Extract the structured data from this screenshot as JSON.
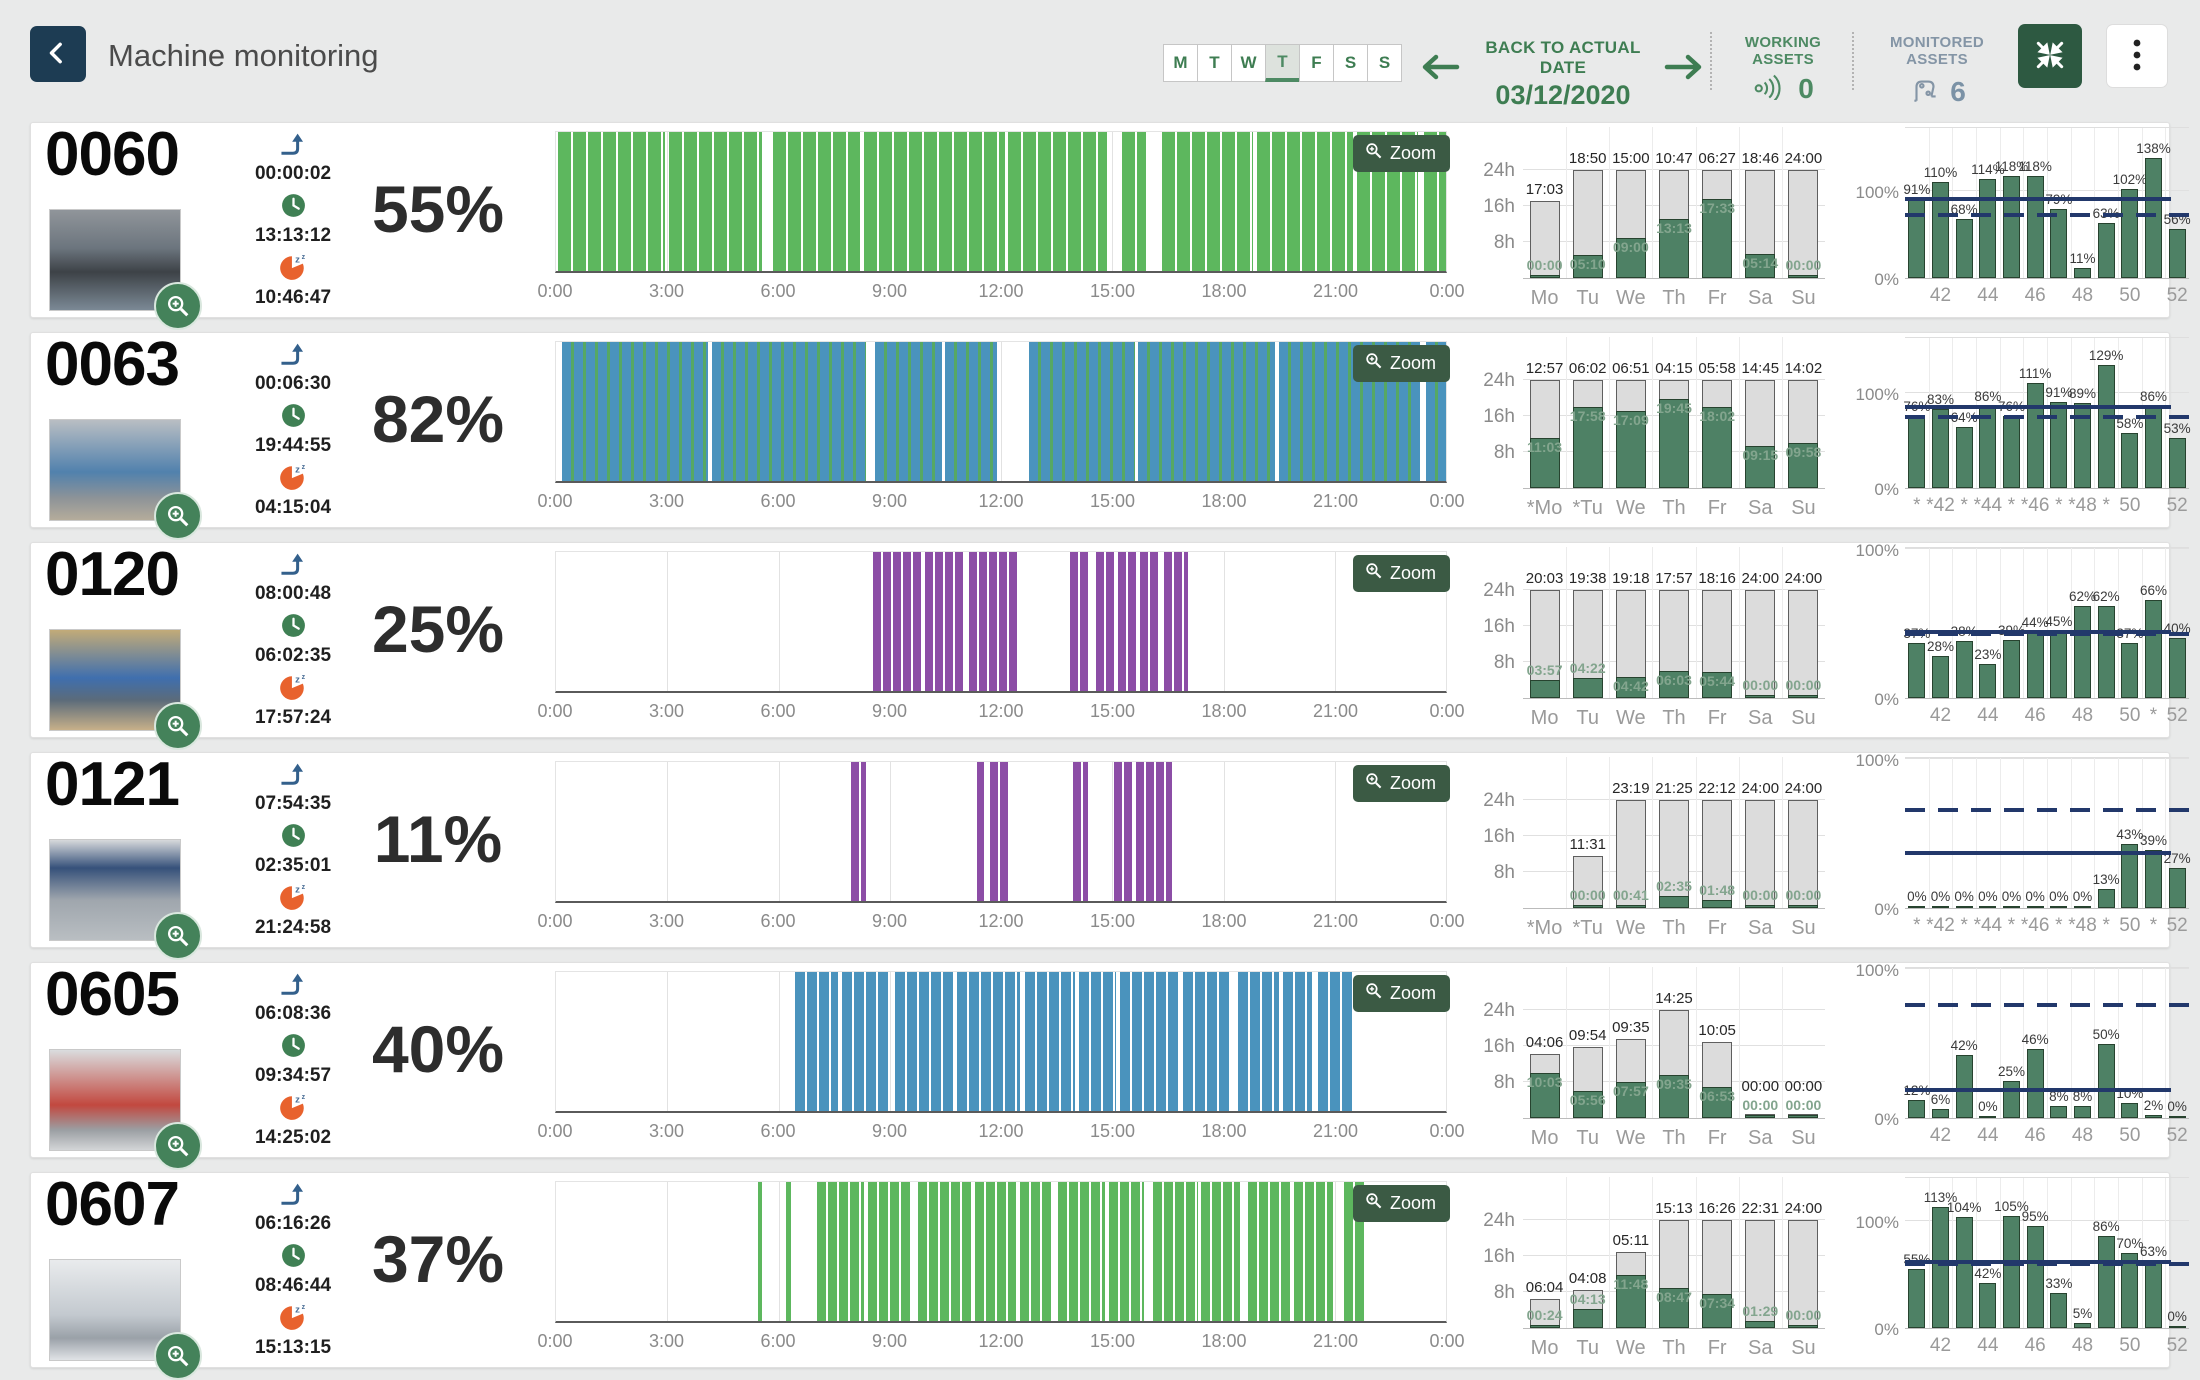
{
  "header": {
    "title": "Machine monitoring",
    "days": [
      "M",
      "T",
      "W",
      "T",
      "F",
      "S",
      "S"
    ],
    "active_day_index": 3,
    "back_to_date_label": "BACK TO ACTUAL DATE",
    "date": "03/12/2020",
    "working_assets_label": "WORKING ASSETS",
    "working_assets_count": "0",
    "monitored_assets_label": "MONITORED ASSETS",
    "monitored_assets_count": "6"
  },
  "ui": {
    "zoom_label": "Zoom"
  },
  "icons": {
    "back": "chevron-left",
    "prev": "arrow-left",
    "next": "arrow-right",
    "working": "signal-waves",
    "monitored": "robot-arm",
    "collapse": "arrows-to-center",
    "more": "kebab-dots",
    "stat1": "turn-up-arrow",
    "stat2": "clock",
    "stat3": "sleep-clock",
    "photo_zoom": "magnifier-plus",
    "zoom_button": "magnifier-plus"
  },
  "colors": {
    "accent_green": "#3e7d52",
    "navy_button": "#1d3c53",
    "dark_green_button": "#2d5941",
    "bar_green": "#4e8165",
    "bar_gray": "#dcdcdc",
    "line_navy": "#22386b",
    "timeline_green": "#5db75e",
    "timeline_blue": "#4a93bd",
    "timeline_purple": "#8c4da6"
  },
  "axes": {
    "timeline_ticks": [
      "0:00",
      "3:00",
      "6:00",
      "9:00",
      "12:00",
      "15:00",
      "18:00",
      "21:00",
      "0:00"
    ],
    "daily_yticks": [
      "24h",
      "16h",
      "8h"
    ],
    "weekly_yticks": [
      "100%",
      "0%"
    ]
  },
  "machines": [
    {
      "id": "0060",
      "percent": "55%",
      "startup_time": "00:00:02",
      "run_time": "13:13:12",
      "idle_time": "10:46:47",
      "timeline": {
        "pattern": {
          "base": "#5db75e",
          "stripe": "rgba(255,255,255,0.55)",
          "base_w": 13,
          "stripe_w": 2
        },
        "segments": [
          [
            0.05,
            2.95
          ],
          [
            3.05,
            5.55
          ],
          [
            5.85,
            8.2
          ],
          [
            8.3,
            12.1
          ],
          [
            12.2,
            14.85
          ],
          [
            15.25,
            15.9
          ],
          [
            16.35,
            18.8
          ],
          [
            18.9,
            21.5
          ],
          [
            21.6,
            23.25
          ],
          [
            23.4,
            24
          ]
        ]
      },
      "daily": {
        "days": [
          "Mo",
          "Tu",
          "We",
          "Th",
          "Fr",
          "Sa",
          "Su"
        ],
        "gray_labels": [
          "17:03",
          "18:50",
          "15:00",
          "10:47",
          "06:27",
          "18:46",
          "24:00"
        ],
        "green_labels": [
          "00:00",
          "05:10",
          "09:00",
          "13:13",
          "17:33",
          "05:14",
          "00:00"
        ]
      },
      "weekly": {
        "values": [
          91,
          110,
          68,
          114,
          118,
          118,
          79,
          11,
          63,
          102,
          138,
          56
        ],
        "labels": [
          "",
          "42",
          "",
          "44",
          "",
          "46",
          "",
          "48",
          "",
          "50",
          "",
          "52"
        ],
        "ymax": 175,
        "avg_line": 91,
        "target_line": 72
      }
    },
    {
      "id": "0063",
      "percent": "82%",
      "startup_time": "00:06:30",
      "run_time": "19:44:55",
      "idle_time": "04:15:04",
      "timeline": {
        "pattern": {
          "base": "#4a93bd",
          "stripe": "#56a863",
          "base_w": 9,
          "stripe_w": 3
        },
        "segments": [
          [
            0.15,
            4.1
          ],
          [
            4.2,
            8.35
          ],
          [
            8.6,
            10.4
          ],
          [
            10.5,
            11.9
          ],
          [
            12.75,
            15.6
          ],
          [
            15.7,
            19.4
          ],
          [
            19.5,
            23.3
          ],
          [
            23.45,
            24
          ]
        ]
      },
      "daily": {
        "days": [
          "*Mo",
          "*Tu",
          "We",
          "Th",
          "Fr",
          "Sa",
          "Su"
        ],
        "gray_labels": [
          "12:57",
          "06:02",
          "06:51",
          "04:15",
          "05:58",
          "14:45",
          "14:02"
        ],
        "green_labels": [
          "11:03",
          "17:58",
          "17:09",
          "19:45",
          "18:02",
          "09:15",
          "09:58"
        ]
      },
      "weekly": {
        "values": [
          76,
          83,
          64,
          86,
          76,
          111,
          91,
          89,
          129,
          58,
          86,
          53
        ],
        "labels": [
          "*",
          "*42",
          "*",
          "*44",
          "*",
          "*46",
          "*",
          "*48",
          "*",
          "50",
          "",
          "52"
        ],
        "ymax": 160,
        "avg_line": 85,
        "target_line": 75
      }
    },
    {
      "id": "0120",
      "percent": "25%",
      "startup_time": "08:00:48",
      "run_time": "06:02:35",
      "idle_time": "17:57:24",
      "timeline": {
        "pattern": {
          "base": "#8c4da6",
          "stripe": "rgba(255,255,255,0.32)",
          "base_w": 8,
          "stripe_w": 2
        },
        "segments": [
          [
            8.55,
            9.9
          ],
          [
            9.95,
            11.0
          ],
          [
            11.15,
            12.45
          ],
          [
            13.85,
            14.35
          ],
          [
            14.55,
            15.05
          ],
          [
            15.15,
            15.65
          ],
          [
            15.75,
            16.3
          ],
          [
            16.4,
            17.05
          ]
        ]
      },
      "daily": {
        "days": [
          "Mo",
          "Tu",
          "We",
          "Th",
          "Fr",
          "Sa",
          "Su"
        ],
        "gray_labels": [
          "20:03",
          "19:38",
          "19:18",
          "17:57",
          "18:16",
          "24:00",
          "24:00"
        ],
        "green_labels": [
          "03:57",
          "04:22",
          "04:42",
          "06:03",
          "05:44",
          "00:00",
          "00:00"
        ]
      },
      "weekly": {
        "values": [
          37,
          28,
          38,
          23,
          39,
          44,
          45,
          62,
          62,
          37,
          66,
          40
        ],
        "labels": [
          "",
          "42",
          "",
          "44",
          "",
          "46",
          "",
          "48",
          "",
          "50",
          "*",
          "52"
        ],
        "ymax": 102,
        "avg_line": 44,
        "target_line": 43
      }
    },
    {
      "id": "0121",
      "percent": "11%",
      "startup_time": "07:54:35",
      "run_time": "02:35:01",
      "idle_time": "21:24:58",
      "timeline": {
        "pattern": {
          "base": "#8c4da6",
          "stripe": "rgba(255,255,255,0.32)",
          "base_w": 8,
          "stripe_w": 2
        },
        "segments": [
          [
            7.95,
            8.35
          ],
          [
            11.35,
            11.55
          ],
          [
            11.7,
            12.2
          ],
          [
            13.95,
            14.35
          ],
          [
            15.05,
            15.55
          ],
          [
            15.65,
            16.6
          ]
        ]
      },
      "daily": {
        "days": [
          "*Mo",
          "*Tu",
          "We",
          "Th",
          "Fr",
          "Sa",
          "Su"
        ],
        "gray_labels": [
          null,
          "11:31",
          "23:19",
          "21:25",
          "22:12",
          "24:00",
          "24:00"
        ],
        "green_labels": [
          null,
          "00:00",
          "00:41",
          "02:35",
          "01:48",
          "00:00",
          "00:00"
        ]
      },
      "weekly": {
        "values": [
          0,
          0,
          0,
          0,
          0,
          0,
          0,
          0,
          13,
          43,
          39,
          27
        ],
        "labels": [
          "*",
          "*42",
          "*",
          "*44",
          "*",
          "*46",
          "*",
          "*48",
          "*",
          "50",
          "*",
          "52"
        ],
        "ymax": 102,
        "avg_line": 37,
        "target_line": 66
      }
    },
    {
      "id": "0605",
      "percent": "40%",
      "startup_time": "06:08:36",
      "run_time": "09:34:57",
      "idle_time": "14:25:02",
      "timeline": {
        "pattern": {
          "base": "#4a93bd",
          "stripe": "rgba(255,255,255,0.55)",
          "base_w": 10,
          "stripe_w": 2
        },
        "segments": [
          [
            6.45,
            7.6
          ],
          [
            7.7,
            9.0
          ],
          [
            9.15,
            10.7
          ],
          [
            10.8,
            12.5
          ],
          [
            12.65,
            14.0
          ],
          [
            14.1,
            15.1
          ],
          [
            15.2,
            16.8
          ],
          [
            16.9,
            18.2
          ],
          [
            18.4,
            19.5
          ],
          [
            19.6,
            20.4
          ],
          [
            20.55,
            21.5
          ]
        ]
      },
      "daily": {
        "days": [
          "Mo",
          "Tu",
          "We",
          "Th",
          "Fr",
          "Sa",
          "Su"
        ],
        "gray_labels": [
          "04:06",
          "09:54",
          "09:35",
          "14:25",
          "10:05",
          "00:00",
          "00:00"
        ],
        "green_labels": [
          "10:03",
          "05:56",
          "07:57",
          "09:35",
          "06:53",
          "00:00",
          "00:00"
        ]
      },
      "weekly": {
        "values": [
          12,
          6,
          42,
          0,
          25,
          46,
          8,
          8,
          50,
          10,
          2,
          0
        ],
        "labels": [
          "",
          "42",
          "",
          "44",
          "",
          "46",
          "",
          "48",
          "",
          "50",
          "",
          "52"
        ],
        "ymax": 102,
        "avg_line": 19,
        "target_line": 76
      }
    },
    {
      "id": "0607",
      "percent": "37%",
      "startup_time": "06:16:26",
      "run_time": "08:46:44",
      "idle_time": "15:13:15",
      "timeline": {
        "pattern": {
          "base": "#5db75e",
          "stripe": "rgba(255,255,255,0.55)",
          "base_w": 9,
          "stripe_w": 2
        },
        "segments": [
          [
            5.45,
            5.55
          ],
          [
            6.2,
            6.35
          ],
          [
            7.05,
            8.3
          ],
          [
            8.4,
            9.55
          ],
          [
            9.75,
            11.2
          ],
          [
            11.3,
            12.4
          ],
          [
            12.5,
            13.35
          ],
          [
            13.55,
            14.8
          ],
          [
            14.9,
            15.85
          ],
          [
            16.1,
            17.3
          ],
          [
            17.4,
            18.45
          ],
          [
            18.65,
            19.8
          ],
          [
            19.9,
            20.95
          ],
          [
            21.25,
            21.8
          ]
        ]
      },
      "daily": {
        "days": [
          "Mo",
          "Tu",
          "We",
          "Th",
          "Fr",
          "Sa",
          "Su"
        ],
        "gray_labels": [
          "06:04",
          "04:08",
          "05:11",
          "15:13",
          "16:26",
          "22:31",
          "24:00"
        ],
        "green_labels": [
          "00:24",
          "04:13",
          "11:48",
          "08:47",
          "07:34",
          "01:29",
          "00:00"
        ]
      },
      "weekly": {
        "values": [
          55,
          113,
          104,
          42,
          105,
          95,
          33,
          5,
          86,
          70,
          63,
          0
        ],
        "labels": [
          "",
          "42",
          "",
          "44",
          "",
          "46",
          "",
          "48",
          "",
          "50",
          "",
          "52"
        ],
        "ymax": 142,
        "avg_line": 62,
        "target_line": 60
      }
    }
  ]
}
